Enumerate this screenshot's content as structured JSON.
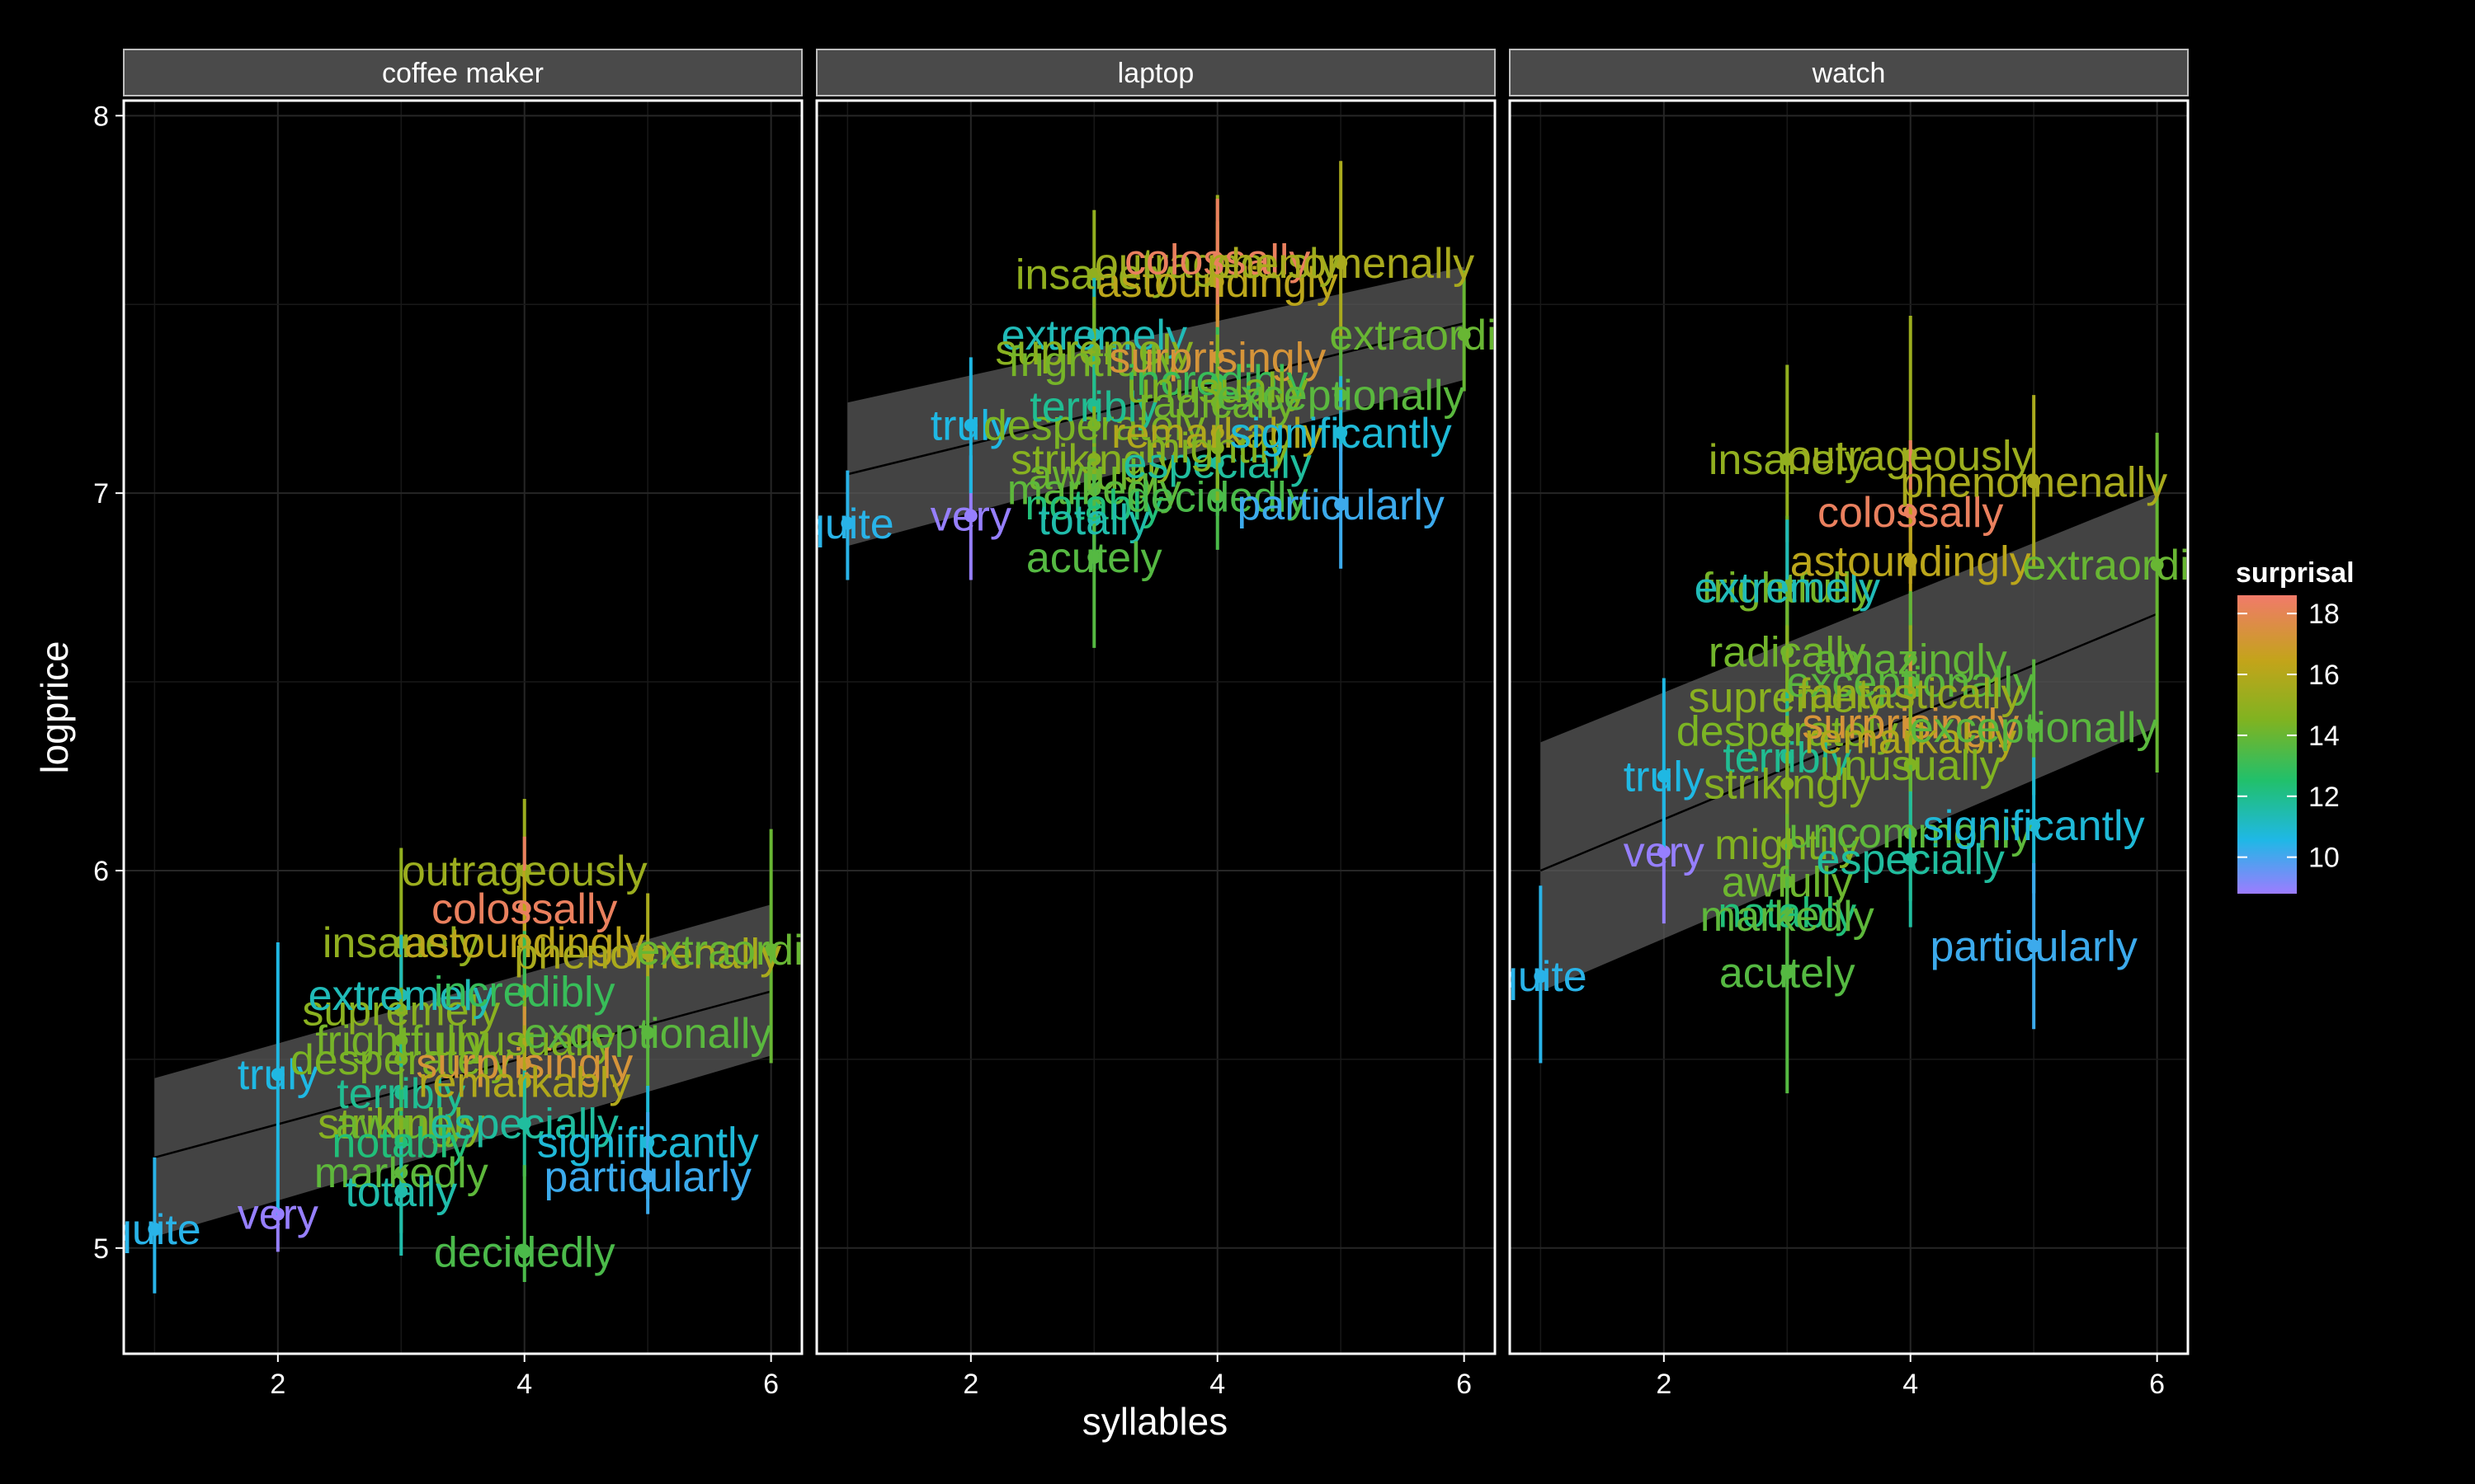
{
  "chart_data": {
    "type": "scatter",
    "xlabel": "syllables",
    "ylabel": "logprice",
    "xlim": [
      0.75,
      6.25
    ],
    "ylim": [
      4.72,
      8.04
    ],
    "x_ticks": [
      2,
      4,
      6
    ],
    "y_ticks": [
      5,
      6,
      7,
      8
    ],
    "grid": true,
    "smooth": "linear fit with confidence band",
    "legend": {
      "title": "surprisal",
      "position": "right",
      "ticks": [
        10,
        12,
        14,
        16,
        18
      ],
      "range": [
        8.8,
        18.6
      ],
      "colors": [
        "#9C7CFF",
        "#1FB8E6",
        "#21C06B",
        "#7FB321",
        "#C3A41A",
        "#F17A6A"
      ]
    },
    "panels": [
      {
        "name": "coffee maker",
        "fit": {
          "y_at_1": 5.24,
          "y_at_6": 5.68,
          "band_lo_1": 5.03,
          "band_hi_1": 5.45,
          "band_lo_6": 5.51,
          "band_hi_6": 5.91
        },
        "points": [
          {
            "label": "quite",
            "x": 1,
            "y": 5.05,
            "ylo": 4.88,
            "yhi": 5.24,
            "s": 10.6
          },
          {
            "label": "very",
            "x": 2,
            "y": 5.09,
            "ylo": 4.99,
            "yhi": 5.26,
            "s": 8.9
          },
          {
            "label": "truly",
            "x": 2,
            "y": 5.46,
            "ylo": 5.08,
            "yhi": 5.81,
            "s": 10.8
          },
          {
            "label": "supremely",
            "x": 3,
            "y": 5.63,
            "ylo": 5.46,
            "yhi": 5.8,
            "s": 15.0
          },
          {
            "label": "insanely",
            "x": 3,
            "y": 5.81,
            "ylo": 5.57,
            "yhi": 6.06,
            "s": 15.2
          },
          {
            "label": "extremely",
            "x": 3,
            "y": 5.67,
            "ylo": 5.52,
            "yhi": 5.83,
            "s": 11.5
          },
          {
            "label": "desperately",
            "x": 3,
            "y": 5.5,
            "ylo": 5.36,
            "yhi": 5.65,
            "s": 14.6
          },
          {
            "label": "frightfully",
            "x": 3,
            "y": 5.55,
            "ylo": 5.41,
            "yhi": 5.69,
            "s": 14.5
          },
          {
            "label": "terribly",
            "x": 3,
            "y": 5.41,
            "ylo": 5.29,
            "yhi": 5.54,
            "s": 12.1
          },
          {
            "label": "strikingly",
            "x": 3,
            "y": 5.33,
            "ylo": 5.19,
            "yhi": 5.46,
            "s": 14.9
          },
          {
            "label": "awfully",
            "x": 3,
            "y": 5.33,
            "ylo": 5.18,
            "yhi": 5.48,
            "s": 14.3
          },
          {
            "label": "notably",
            "x": 3,
            "y": 5.28,
            "ylo": 5.13,
            "yhi": 5.42,
            "s": 12.5
          },
          {
            "label": "markedly",
            "x": 3,
            "y": 5.2,
            "ylo": 5.04,
            "yhi": 5.33,
            "s": 14.0
          },
          {
            "label": "totally",
            "x": 3,
            "y": 5.15,
            "ylo": 4.98,
            "yhi": 5.28,
            "s": 11.7
          },
          {
            "label": "outrageously",
            "x": 4,
            "y": 6.0,
            "ylo": 5.8,
            "yhi": 6.19,
            "s": 15.5
          },
          {
            "label": "colossally",
            "x": 4,
            "y": 5.9,
            "ylo": 5.71,
            "yhi": 6.09,
            "s": 18.3
          },
          {
            "label": "astoundingly",
            "x": 4,
            "y": 5.81,
            "ylo": 5.62,
            "yhi": 6.0,
            "s": 16.4
          },
          {
            "label": "incredibly",
            "x": 4,
            "y": 5.68,
            "ylo": 5.52,
            "yhi": 5.84,
            "s": 13.2
          },
          {
            "label": "unusually",
            "x": 4,
            "y": 5.55,
            "ylo": 5.4,
            "yhi": 5.7,
            "s": 14.7
          },
          {
            "label": "surprisingly",
            "x": 4,
            "y": 5.49,
            "ylo": 5.34,
            "yhi": 5.64,
            "s": 17.4
          },
          {
            "label": "remarkably",
            "x": 4,
            "y": 5.44,
            "ylo": 5.3,
            "yhi": 5.59,
            "s": 16.1
          },
          {
            "label": "especially",
            "x": 4,
            "y": 5.33,
            "ylo": 5.19,
            "yhi": 5.47,
            "s": 11.9
          },
          {
            "label": "decidedly",
            "x": 4,
            "y": 4.99,
            "ylo": 4.91,
            "yhi": 5.22,
            "s": 13.6
          },
          {
            "label": "phenomenally",
            "x": 5,
            "y": 5.78,
            "ylo": 5.63,
            "yhi": 5.94,
            "s": 15.9
          },
          {
            "label": "exceptionally",
            "x": 5,
            "y": 5.57,
            "ylo": 5.42,
            "yhi": 5.72,
            "s": 13.9
          },
          {
            "label": "significantly",
            "x": 5,
            "y": 5.28,
            "ylo": 5.13,
            "yhi": 5.43,
            "s": 11.0
          },
          {
            "label": "particularly",
            "x": 5,
            "y": 5.19,
            "ylo": 5.09,
            "yhi": 5.36,
            "s": 10.3
          },
          {
            "label": "extraordinarily",
            "x": 6,
            "y": 5.79,
            "ylo": 5.49,
            "yhi": 6.11,
            "s": 14.2
          }
        ]
      },
      {
        "name": "laptop",
        "fit": {
          "y_at_1": 7.05,
          "y_at_6": 7.45,
          "band_lo_1": 6.86,
          "band_hi_1": 7.24,
          "band_lo_6": 7.3,
          "band_hi_6": 7.6
        },
        "points": [
          {
            "label": "quite",
            "x": 1,
            "y": 6.92,
            "ylo": 6.77,
            "yhi": 7.06,
            "s": 10.6
          },
          {
            "label": "very",
            "x": 2,
            "y": 6.94,
            "ylo": 6.77,
            "yhi": 7.1,
            "s": 8.9
          },
          {
            "label": "truly",
            "x": 2,
            "y": 7.18,
            "ylo": 7.0,
            "yhi": 7.36,
            "s": 10.8
          },
          {
            "label": "insanely",
            "x": 3,
            "y": 7.58,
            "ylo": 7.4,
            "yhi": 7.75,
            "s": 15.2
          },
          {
            "label": "extremely",
            "x": 3,
            "y": 7.42,
            "ylo": 7.28,
            "yhi": 7.57,
            "s": 11.5
          },
          {
            "label": "supremely",
            "x": 3,
            "y": 7.38,
            "ylo": 7.25,
            "yhi": 7.52,
            "s": 15.0
          },
          {
            "label": "frightfully",
            "x": 3,
            "y": 7.35,
            "ylo": 7.21,
            "yhi": 7.49,
            "s": 14.5
          },
          {
            "label": "desperately",
            "x": 3,
            "y": 7.18,
            "ylo": 7.04,
            "yhi": 7.32,
            "s": 14.6
          },
          {
            "label": "terribly",
            "x": 3,
            "y": 7.23,
            "ylo": 7.1,
            "yhi": 7.37,
            "s": 12.1
          },
          {
            "label": "strikingly",
            "x": 3,
            "y": 7.09,
            "ylo": 6.95,
            "yhi": 7.23,
            "s": 14.9
          },
          {
            "label": "awfully",
            "x": 3,
            "y": 7.05,
            "ylo": 6.92,
            "yhi": 7.19,
            "s": 14.3
          },
          {
            "label": "markedly",
            "x": 3,
            "y": 7.01,
            "ylo": 6.87,
            "yhi": 7.15,
            "s": 14.0
          },
          {
            "label": "notably",
            "x": 3,
            "y": 6.97,
            "ylo": 6.83,
            "yhi": 7.11,
            "s": 12.5
          },
          {
            "label": "totally",
            "x": 3,
            "y": 6.93,
            "ylo": 6.8,
            "yhi": 7.06,
            "s": 11.7
          },
          {
            "label": "acutely",
            "x": 3,
            "y": 6.83,
            "ylo": 6.59,
            "yhi": 7.07,
            "s": 13.8
          },
          {
            "label": "astoundingly",
            "x": 4,
            "y": 7.56,
            "ylo": 7.4,
            "yhi": 7.72,
            "s": 16.4
          },
          {
            "label": "outrageously",
            "x": 4,
            "y": 7.61,
            "ylo": 7.46,
            "yhi": 7.79,
            "s": 15.5
          },
          {
            "label": "colossally",
            "x": 4,
            "y": 7.62,
            "ylo": 7.46,
            "yhi": 7.78,
            "s": 18.3
          },
          {
            "label": "surprisingly",
            "x": 4,
            "y": 7.36,
            "ylo": 7.22,
            "yhi": 7.5,
            "s": 17.4
          },
          {
            "label": "incredibly",
            "x": 4,
            "y": 7.3,
            "ylo": 7.16,
            "yhi": 7.44,
            "s": 13.2
          },
          {
            "label": "unusually",
            "x": 4,
            "y": 7.28,
            "ylo": 7.14,
            "yhi": 7.42,
            "s": 14.7
          },
          {
            "label": "remarkably",
            "x": 4,
            "y": 7.16,
            "ylo": 7.02,
            "yhi": 7.3,
            "s": 16.1
          },
          {
            "label": "radically",
            "x": 4,
            "y": 7.24,
            "ylo": 7.1,
            "yhi": 7.38,
            "s": 14.4
          },
          {
            "label": "especially",
            "x": 4,
            "y": 7.08,
            "ylo": 6.94,
            "yhi": 7.22,
            "s": 11.9
          },
          {
            "label": "decidedly",
            "x": 4,
            "y": 6.99,
            "ylo": 6.85,
            "yhi": 7.13,
            "s": 13.6
          },
          {
            "label": "mightily",
            "x": 4,
            "y": 7.12,
            "ylo": 6.98,
            "yhi": 7.26,
            "s": 14.8
          },
          {
            "label": "phenomenally",
            "x": 5,
            "y": 7.61,
            "ylo": 7.36,
            "yhi": 7.88,
            "s": 15.9
          },
          {
            "label": "exceptionally",
            "x": 5,
            "y": 7.26,
            "ylo": 7.11,
            "yhi": 7.41,
            "s": 13.9
          },
          {
            "label": "significantly",
            "x": 5,
            "y": 7.16,
            "ylo": 7.01,
            "yhi": 7.31,
            "s": 11.0
          },
          {
            "label": "particularly",
            "x": 5,
            "y": 6.97,
            "ylo": 6.8,
            "yhi": 7.13,
            "s": 10.3
          },
          {
            "label": "extraordinarily",
            "x": 6,
            "y": 7.42,
            "ylo": 7.27,
            "yhi": 7.59,
            "s": 14.2
          }
        ]
      },
      {
        "name": "watch",
        "fit": {
          "y_at_1": 6.0,
          "y_at_6": 6.68,
          "band_lo_1": 5.68,
          "band_hi_1": 6.34,
          "band_lo_6": 6.38,
          "band_hi_6": 7.0
        },
        "points": [
          {
            "label": "quite",
            "x": 1,
            "y": 5.72,
            "ylo": 5.49,
            "yhi": 5.96,
            "s": 10.6
          },
          {
            "label": "very",
            "x": 2,
            "y": 6.05,
            "ylo": 5.86,
            "yhi": 6.24,
            "s": 8.9
          },
          {
            "label": "truly",
            "x": 2,
            "y": 6.25,
            "ylo": 6.06,
            "yhi": 6.51,
            "s": 10.8
          },
          {
            "label": "insanely",
            "x": 3,
            "y": 7.09,
            "ylo": 6.87,
            "yhi": 7.34,
            "s": 15.2
          },
          {
            "label": "frightfully",
            "x": 3,
            "y": 6.75,
            "ylo": 6.56,
            "yhi": 6.94,
            "s": 14.5
          },
          {
            "label": "extremely",
            "x": 3,
            "y": 6.75,
            "ylo": 6.56,
            "yhi": 6.93,
            "s": 11.5
          },
          {
            "label": "radically",
            "x": 3,
            "y": 6.58,
            "ylo": 6.4,
            "yhi": 6.77,
            "s": 14.4
          },
          {
            "label": "supremely",
            "x": 3,
            "y": 6.46,
            "ylo": 6.28,
            "yhi": 6.65,
            "s": 15.0
          },
          {
            "label": "desperately",
            "x": 3,
            "y": 6.37,
            "ylo": 6.19,
            "yhi": 6.55,
            "s": 14.6
          },
          {
            "label": "terribly",
            "x": 3,
            "y": 6.3,
            "ylo": 6.12,
            "yhi": 6.48,
            "s": 12.1
          },
          {
            "label": "strikingly",
            "x": 3,
            "y": 6.23,
            "ylo": 6.05,
            "yhi": 6.41,
            "s": 14.9
          },
          {
            "label": "mightily",
            "x": 3,
            "y": 6.07,
            "ylo": 5.89,
            "yhi": 6.25,
            "s": 14.8
          },
          {
            "label": "awfully",
            "x": 3,
            "y": 5.97,
            "ylo": 5.79,
            "yhi": 6.15,
            "s": 14.3
          },
          {
            "label": "notably",
            "x": 3,
            "y": 5.89,
            "ylo": 5.71,
            "yhi": 6.07,
            "s": 12.5
          },
          {
            "label": "markedly",
            "x": 3,
            "y": 5.88,
            "ylo": 5.7,
            "yhi": 6.06,
            "s": 14.0
          },
          {
            "label": "acutely",
            "x": 3,
            "y": 5.73,
            "ylo": 5.41,
            "yhi": 6.05,
            "s": 13.8
          },
          {
            "label": "outrageously",
            "x": 4,
            "y": 7.1,
            "ylo": 6.87,
            "yhi": 7.47,
            "s": 15.5
          },
          {
            "label": "colossally",
            "x": 4,
            "y": 6.95,
            "ylo": 6.76,
            "yhi": 7.14,
            "s": 18.3
          },
          {
            "label": "astoundingly",
            "x": 4,
            "y": 6.82,
            "ylo": 6.64,
            "yhi": 7.01,
            "s": 16.4
          },
          {
            "label": "amazingly",
            "x": 4,
            "y": 6.56,
            "ylo": 6.38,
            "yhi": 6.74,
            "s": 14.1
          },
          {
            "label": "exceptionally",
            "x": 4,
            "y": 6.5,
            "ylo": 6.32,
            "yhi": 6.68,
            "s": 13.9
          },
          {
            "label": "fantastically",
            "x": 4,
            "y": 6.47,
            "ylo": 6.29,
            "yhi": 6.65,
            "s": 15.4
          },
          {
            "label": "surprisingly",
            "x": 4,
            "y": 6.39,
            "ylo": 6.21,
            "yhi": 6.57,
            "s": 17.4
          },
          {
            "label": "remarkably",
            "x": 4,
            "y": 6.35,
            "ylo": 6.17,
            "yhi": 6.53,
            "s": 16.1
          },
          {
            "label": "unusually",
            "x": 4,
            "y": 6.28,
            "ylo": 6.1,
            "yhi": 6.46,
            "s": 14.7
          },
          {
            "label": "uncommonly",
            "x": 4,
            "y": 6.1,
            "ylo": 5.92,
            "yhi": 6.28,
            "s": 14.0
          },
          {
            "label": "especially",
            "x": 4,
            "y": 6.03,
            "ylo": 5.85,
            "yhi": 6.21,
            "s": 11.9
          },
          {
            "label": "phenomenally",
            "x": 5,
            "y": 7.03,
            "ylo": 6.8,
            "yhi": 7.26,
            "s": 15.9
          },
          {
            "label": "exceptionally",
            "x": 5,
            "y": 6.38,
            "ylo": 6.2,
            "yhi": 6.56,
            "s": 13.9
          },
          {
            "label": "significantly",
            "x": 5,
            "y": 6.12,
            "ylo": 5.94,
            "yhi": 6.3,
            "s": 11.0
          },
          {
            "label": "particularly",
            "x": 5,
            "y": 5.8,
            "ylo": 5.58,
            "yhi": 6.02,
            "s": 10.3
          },
          {
            "label": "extraordinarily",
            "x": 6,
            "y": 6.81,
            "ylo": 6.26,
            "yhi": 7.16,
            "s": 14.2
          }
        ]
      }
    ]
  }
}
